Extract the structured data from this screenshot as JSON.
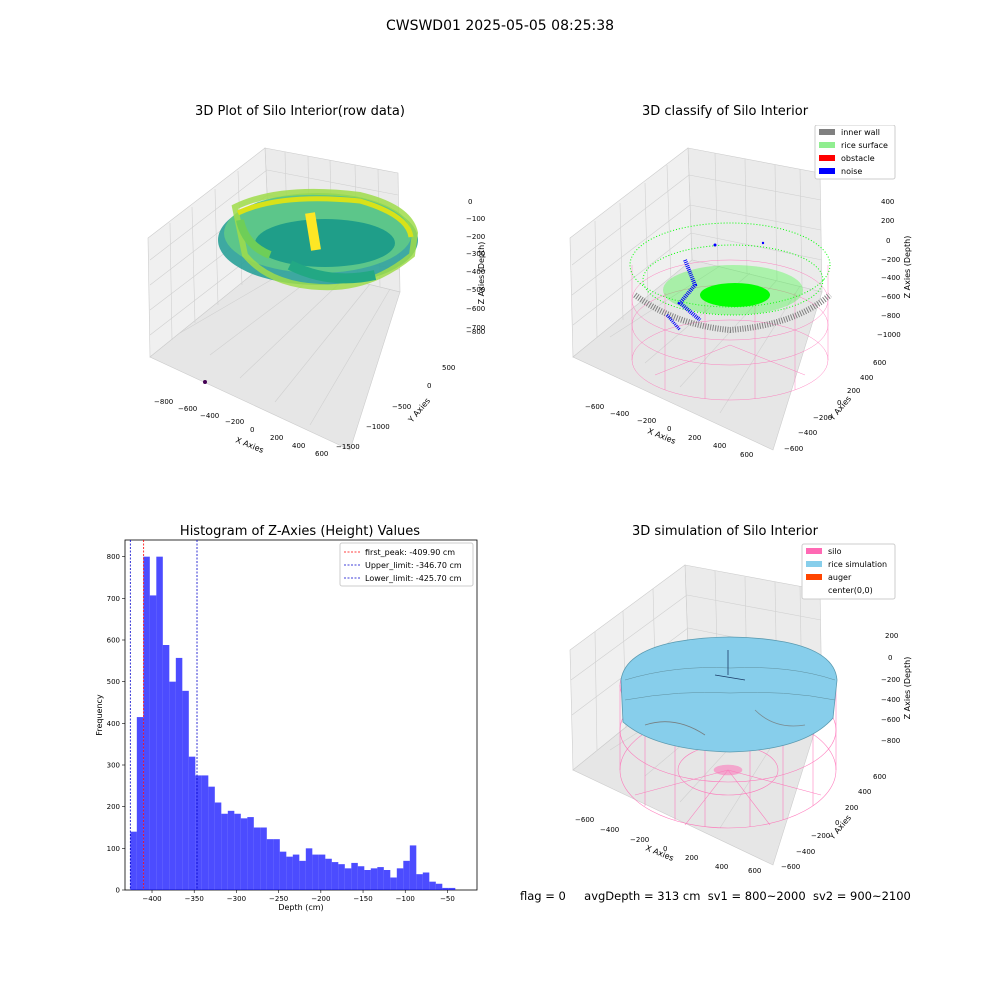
{
  "suptitle": "CWSWD01 2025-05-05 08:25:38",
  "panels": {
    "raw": {
      "title": "3D Plot of Silo Interior(row data)",
      "xlabel": "X Axies",
      "ylabel": "Y Axies",
      "zlabel": "Z Axies (Depth)",
      "xticks": [
        "−800",
        "−600",
        "−400",
        "−200",
        "0",
        "200",
        "400",
        "600"
      ],
      "yticks": [
        "500",
        "0",
        "−500",
        "−1000",
        "−1500"
      ],
      "zticks": [
        "0",
        "−100",
        "−200",
        "−300",
        "−400",
        "−500",
        "−600",
        "−700",
        "−800"
      ]
    },
    "classify": {
      "title": "3D classify of Silo Interior",
      "xlabel": "X Axies",
      "ylabel": "Y Axies",
      "zlabel": "Z Axies (Depth)",
      "xticks": [
        "−600",
        "−400",
        "−200",
        "0",
        "200",
        "400",
        "600"
      ],
      "yticks": [
        "600",
        "400",
        "200",
        "0",
        "−200",
        "−400",
        "−600"
      ],
      "zticks": [
        "400",
        "200",
        "0",
        "−200",
        "−400",
        "−600",
        "−800",
        "−1000"
      ],
      "legend": [
        {
          "label": "inner wall",
          "color": "#808080"
        },
        {
          "label": "rice surface",
          "color": "#90ee90"
        },
        {
          "label": "obstacle",
          "color": "#ff0000"
        },
        {
          "label": "noise",
          "color": "#0000ff"
        }
      ]
    },
    "simulation": {
      "title": "3D simulation of Silo Interior",
      "xlabel": "X Axies",
      "ylabel": "Y Axies",
      "zlabel": "Z Axies (Depth)",
      "xticks": [
        "−600",
        "−400",
        "−200",
        "0",
        "200",
        "400",
        "600"
      ],
      "yticks": [
        "600",
        "400",
        "200",
        "0",
        "−200",
        "−400",
        "−600"
      ],
      "zticks": [
        "200",
        "0",
        "−200",
        "−400",
        "−600",
        "−800"
      ],
      "legend": [
        {
          "label": "silo",
          "color": "#ff69b4"
        },
        {
          "label": "rice simulation",
          "color": "#87ceeb"
        },
        {
          "label": "auger",
          "color": "#ff4500"
        },
        {
          "label": "center(0,0)",
          "color": ""
        }
      ]
    }
  },
  "footer": {
    "flag": "flag = 0",
    "avg": "avgDepth = 313 cm",
    "sv1": "sv1 = 800~2000",
    "sv2": "sv2 = 900~2100"
  },
  "chart_data": [
    {
      "type": "bar",
      "title": "Histogram of Z-Axies (Height) Values",
      "xlabel": "Depth (cm)",
      "ylabel": "Frequency",
      "xlim": [
        -432,
        -15
      ],
      "ylim": [
        0,
        840
      ],
      "xticks": [
        -400,
        -350,
        -300,
        -250,
        -200,
        -150,
        -100,
        -50
      ],
      "yticks": [
        0,
        100,
        200,
        300,
        400,
        500,
        600,
        700,
        800
      ],
      "bar_color": "#0000ff",
      "bin_start": -425.7,
      "bin_width": 7.7,
      "values": [
        140,
        415,
        800,
        707,
        800,
        588,
        500,
        557,
        478,
        320,
        275,
        275,
        248,
        210,
        183,
        190,
        183,
        172,
        175,
        150,
        150,
        122,
        122,
        92,
        80,
        85,
        70,
        100,
        85,
        85,
        75,
        67,
        62,
        52,
        65,
        57,
        48,
        52,
        55,
        48,
        30,
        52,
        70,
        107,
        38,
        42,
        20,
        15,
        5,
        5
      ],
      "vlines": [
        {
          "x": -409.9,
          "color": "#ff0000",
          "label": "first_peak: -409.90 cm"
        },
        {
          "x": -346.7,
          "color": "#0000cc",
          "label": "Upper_limit: -346.70 cm"
        },
        {
          "x": -425.7,
          "color": "#0000cc",
          "label": "Lower_limit: -425.70 cm"
        }
      ],
      "legend_position": "top-right"
    }
  ]
}
